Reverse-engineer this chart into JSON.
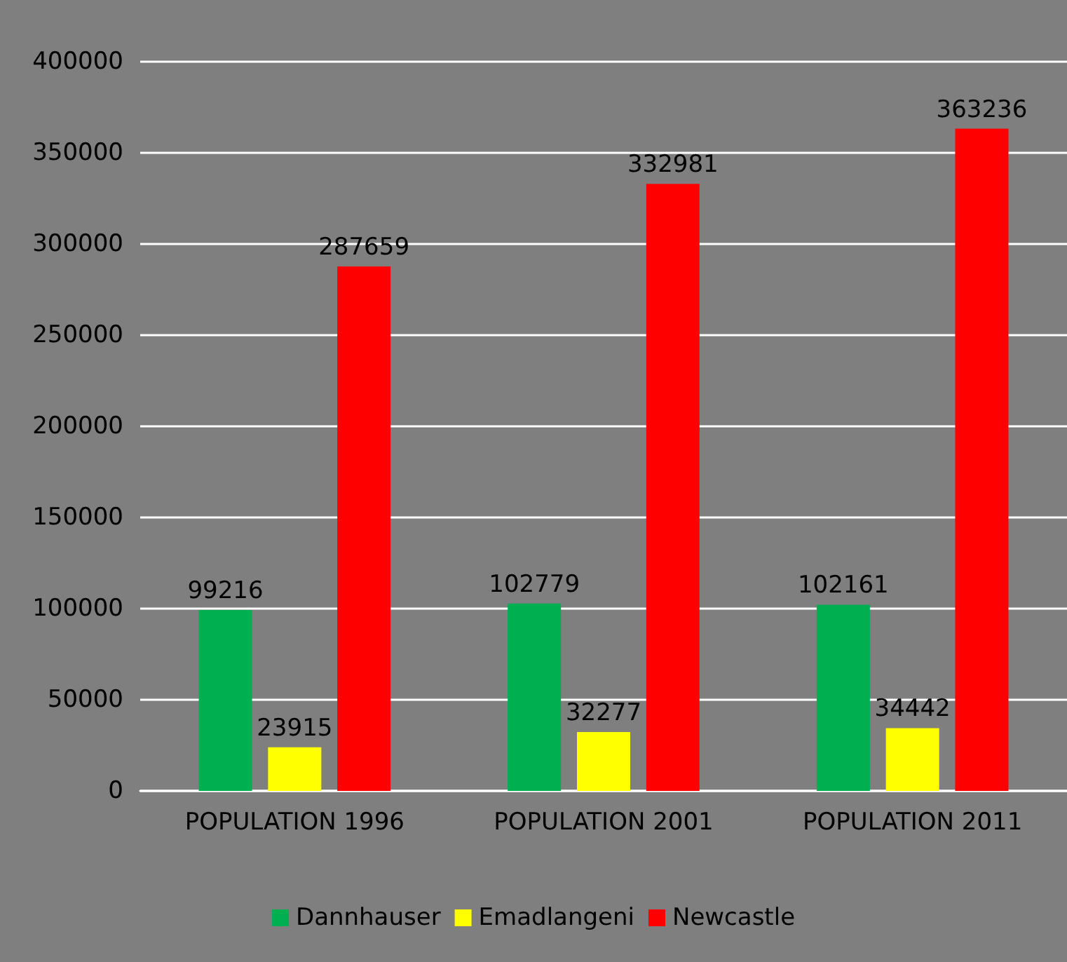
{
  "chart_data": {
    "type": "bar",
    "categories": [
      "POPULATION 1996",
      "POPULATION 2001",
      "POPULATION 2011"
    ],
    "series": [
      {
        "name": "Dannhauser",
        "color": "#00b050",
        "values": [
          99216,
          102779,
          102161
        ]
      },
      {
        "name": "Emadlangeni",
        "color": "#ffff00",
        "values": [
          23915,
          32277,
          34442
        ]
      },
      {
        "name": "Newcastle",
        "color": "#ff0000",
        "values": [
          287659,
          332981,
          363236
        ]
      }
    ],
    "ylim": [
      0,
      400000
    ],
    "yticks": [
      0,
      50000,
      100000,
      150000,
      200000,
      250000,
      300000,
      350000,
      400000
    ],
    "grid": "y",
    "legend": "bottom",
    "data_labels": true
  }
}
